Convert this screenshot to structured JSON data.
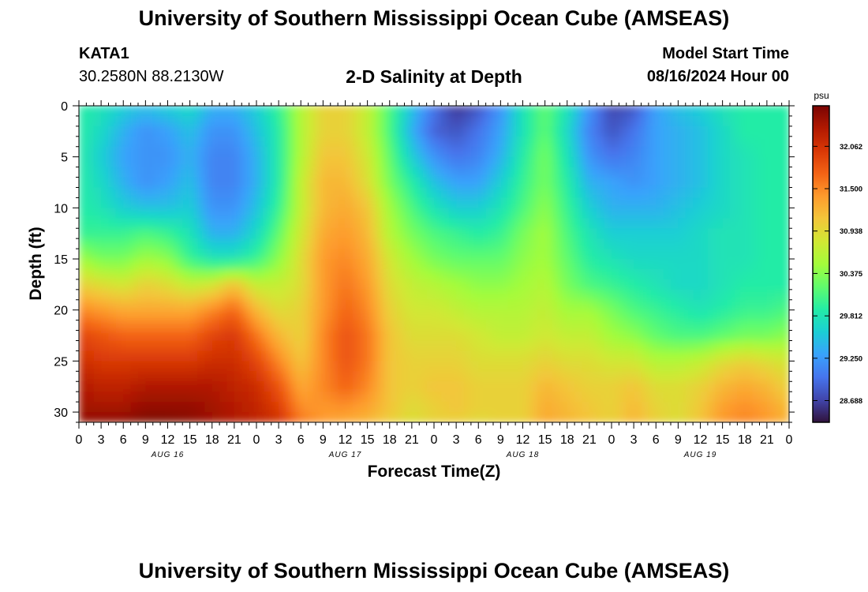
{
  "header": {
    "title": "University of Southern Mississippi Ocean Cube (AMSEAS)",
    "station": "KATA1",
    "coordinates": "30.2580N  88.2130W",
    "subtitle": "2-D Salinity at Depth",
    "start_label": "Model Start Time",
    "start_value": "08/16/2024 Hour 00"
  },
  "footer": {
    "title": "University of Southern Mississippi Ocean Cube (AMSEAS)"
  },
  "chart_data": {
    "type": "heatmap",
    "title": "2-D Salinity at Depth",
    "xlabel": "Forecast Time(Z)",
    "ylabel": "Depth (ft)",
    "x_ticks": [
      "0",
      "3",
      "6",
      "9",
      "12",
      "15",
      "18",
      "21",
      "0",
      "3",
      "6",
      "9",
      "12",
      "15",
      "18",
      "21",
      "0",
      "3",
      "6",
      "9",
      "12",
      "15",
      "18",
      "21",
      "0",
      "3",
      "6",
      "9",
      "12",
      "15",
      "18",
      "21",
      "0"
    ],
    "date_labels": [
      {
        "label": "AUG 16",
        "hour": 12
      },
      {
        "label": "AUG 17",
        "hour": 36
      },
      {
        "label": "AUG 18",
        "hour": 60
      },
      {
        "label": "AUG 19",
        "hour": 84
      }
    ],
    "xlim_hours": [
      0,
      96
    ],
    "y_ticks": [
      0,
      5,
      10,
      15,
      20,
      25,
      30
    ],
    "ylim_ft": [
      0,
      31
    ],
    "colorbar": {
      "unit": "psu",
      "ticks": [
        "32.062",
        "31.500",
        "30.938",
        "30.375",
        "29.812",
        "29.250",
        "28.688"
      ],
      "range": [
        28.4,
        32.6
      ],
      "colors": [
        "#30123b",
        "#4145ab",
        "#4675ed",
        "#39a2fc",
        "#1bcfd4",
        "#24eca6",
        "#61fc6c",
        "#a4fc3b",
        "#d1e834",
        "#f3c63a",
        "#fe9b2d",
        "#f36315",
        "#d93806",
        "#b11901",
        "#7a0403"
      ]
    },
    "depth_ft": [
      0,
      2.5,
      5,
      7.5,
      10,
      12.5,
      15,
      17.5,
      20,
      22.5,
      25,
      27.5,
      30,
      31
    ],
    "hours": [
      0,
      3,
      6,
      9,
      12,
      15,
      18,
      21,
      24,
      27,
      30,
      33,
      36,
      39,
      42,
      45,
      48,
      51,
      54,
      57,
      60,
      63,
      66,
      69,
      72,
      75,
      78,
      81,
      84,
      87,
      90,
      93,
      96
    ],
    "salinity_psu": [
      [
        29.9,
        29.8,
        29.6,
        29.5,
        29.6,
        29.7,
        29.4,
        29.4,
        29.6,
        30.0,
        30.6,
        31.0,
        31.0,
        30.7,
        30.1,
        29.5,
        29.0,
        28.6,
        28.8,
        29.2,
        29.8,
        30.2,
        29.8,
        29.2,
        28.7,
        28.8,
        29.3,
        29.5,
        29.6,
        29.8,
        29.9,
        29.9,
        29.9
      ],
      [
        29.9,
        29.7,
        29.4,
        29.2,
        29.3,
        29.5,
        29.2,
        29.2,
        29.5,
        29.9,
        30.6,
        31.0,
        31.0,
        30.7,
        30.1,
        29.4,
        28.9,
        28.8,
        29.0,
        29.3,
        29.8,
        30.2,
        29.7,
        29.1,
        28.8,
        29.0,
        29.3,
        29.4,
        29.5,
        29.7,
        29.9,
        29.9,
        29.9
      ],
      [
        29.9,
        29.6,
        29.3,
        29.2,
        29.2,
        29.4,
        29.1,
        29.1,
        29.4,
        29.9,
        30.6,
        31.1,
        31.1,
        30.8,
        30.2,
        29.6,
        29.2,
        29.0,
        29.1,
        29.4,
        29.9,
        30.3,
        29.8,
        29.2,
        29.0,
        29.1,
        29.3,
        29.4,
        29.5,
        29.7,
        29.8,
        29.9,
        29.9
      ],
      [
        29.9,
        29.7,
        29.4,
        29.2,
        29.3,
        29.5,
        29.1,
        29.1,
        29.4,
        29.9,
        30.7,
        31.2,
        31.2,
        30.9,
        30.3,
        29.9,
        29.5,
        29.3,
        29.3,
        29.6,
        30.0,
        30.3,
        29.9,
        29.4,
        29.3,
        29.2,
        29.3,
        29.4,
        29.5,
        29.7,
        29.8,
        29.9,
        29.9
      ],
      [
        29.9,
        29.8,
        29.6,
        29.5,
        29.5,
        29.6,
        29.2,
        29.2,
        29.5,
        30.0,
        30.7,
        31.2,
        31.3,
        31.1,
        30.5,
        30.1,
        29.8,
        29.6,
        29.6,
        29.8,
        30.1,
        30.4,
        30.0,
        29.6,
        29.4,
        29.4,
        29.4,
        29.5,
        29.6,
        29.7,
        29.8,
        29.9,
        29.9
      ],
      [
        30.0,
        30.0,
        30.0,
        30.1,
        30.0,
        29.8,
        29.4,
        29.4,
        29.7,
        30.2,
        30.8,
        31.3,
        31.4,
        31.2,
        30.6,
        30.3,
        30.1,
        30.0,
        29.9,
        30.0,
        30.3,
        30.5,
        30.1,
        29.8,
        29.6,
        29.6,
        29.6,
        29.6,
        29.7,
        29.8,
        29.8,
        29.9,
        29.9
      ],
      [
        30.5,
        30.3,
        30.3,
        30.5,
        30.4,
        30.0,
        29.8,
        29.8,
        30.0,
        30.4,
        30.9,
        31.4,
        31.5,
        31.3,
        30.8,
        30.5,
        30.3,
        30.2,
        30.2,
        30.2,
        30.4,
        30.5,
        30.2,
        29.9,
        29.8,
        29.7,
        29.7,
        29.7,
        29.7,
        29.8,
        29.8,
        29.9,
        29.9
      ],
      [
        31.0,
        30.9,
        30.8,
        31.0,
        30.9,
        30.7,
        30.8,
        31.1,
        30.7,
        30.7,
        30.9,
        31.4,
        31.6,
        31.4,
        30.9,
        30.7,
        30.6,
        30.5,
        30.4,
        30.4,
        30.5,
        30.6,
        30.3,
        30.1,
        30.0,
        29.9,
        29.8,
        29.7,
        29.7,
        29.8,
        29.9,
        29.9,
        29.9
      ],
      [
        31.5,
        31.4,
        31.3,
        31.3,
        31.3,
        31.3,
        31.5,
        31.7,
        31.2,
        30.9,
        31.0,
        31.4,
        31.7,
        31.5,
        31.0,
        30.8,
        30.8,
        30.7,
        30.6,
        30.6,
        30.6,
        30.7,
        30.5,
        30.5,
        30.3,
        30.1,
        30.0,
        29.9,
        29.8,
        29.9,
        30.0,
        30.0,
        30.1
      ],
      [
        31.9,
        31.8,
        31.7,
        31.7,
        31.7,
        31.7,
        31.9,
        32.0,
        31.6,
        31.2,
        31.0,
        31.5,
        31.8,
        31.6,
        31.1,
        30.9,
        30.9,
        30.9,
        30.8,
        30.7,
        30.7,
        30.8,
        30.7,
        30.7,
        30.5,
        30.4,
        30.2,
        30.1,
        30.1,
        30.2,
        30.3,
        30.3,
        30.4
      ],
      [
        32.1,
        32.0,
        32.0,
        32.0,
        32.0,
        32.0,
        32.1,
        32.1,
        31.9,
        31.5,
        31.1,
        31.5,
        31.8,
        31.6,
        31.1,
        31.0,
        31.0,
        31.0,
        30.9,
        30.9,
        30.9,
        31.0,
        30.9,
        30.9,
        30.8,
        30.8,
        30.6,
        30.6,
        30.7,
        30.9,
        31.0,
        30.9,
        30.8
      ],
      [
        32.3,
        32.2,
        32.2,
        32.3,
        32.3,
        32.3,
        32.3,
        32.2,
        32.1,
        31.8,
        31.3,
        31.5,
        31.7,
        31.5,
        31.1,
        31.0,
        31.1,
        31.1,
        31.0,
        31.0,
        31.0,
        31.2,
        31.1,
        31.0,
        31.0,
        31.1,
        30.9,
        30.9,
        31.0,
        31.2,
        31.3,
        31.2,
        31.0
      ],
      [
        32.4,
        32.4,
        32.4,
        32.5,
        32.5,
        32.5,
        32.4,
        32.3,
        32.2,
        32.0,
        31.5,
        31.4,
        31.4,
        31.3,
        31.1,
        30.9,
        31.0,
        31.1,
        31.0,
        31.0,
        31.0,
        31.3,
        31.2,
        31.1,
        31.0,
        31.2,
        31.0,
        30.9,
        31.1,
        31.4,
        31.5,
        31.4,
        31.2
      ],
      [
        32.5,
        32.5,
        32.5,
        32.6,
        32.6,
        32.5,
        32.4,
        32.3,
        32.2,
        32.1,
        31.6,
        31.4,
        31.3,
        31.2,
        31.0,
        30.9,
        31.0,
        31.0,
        30.9,
        31.0,
        31.0,
        31.3,
        31.2,
        31.1,
        31.0,
        31.2,
        31.0,
        30.9,
        31.1,
        31.4,
        31.5,
        31.4,
        31.2
      ]
    ]
  }
}
